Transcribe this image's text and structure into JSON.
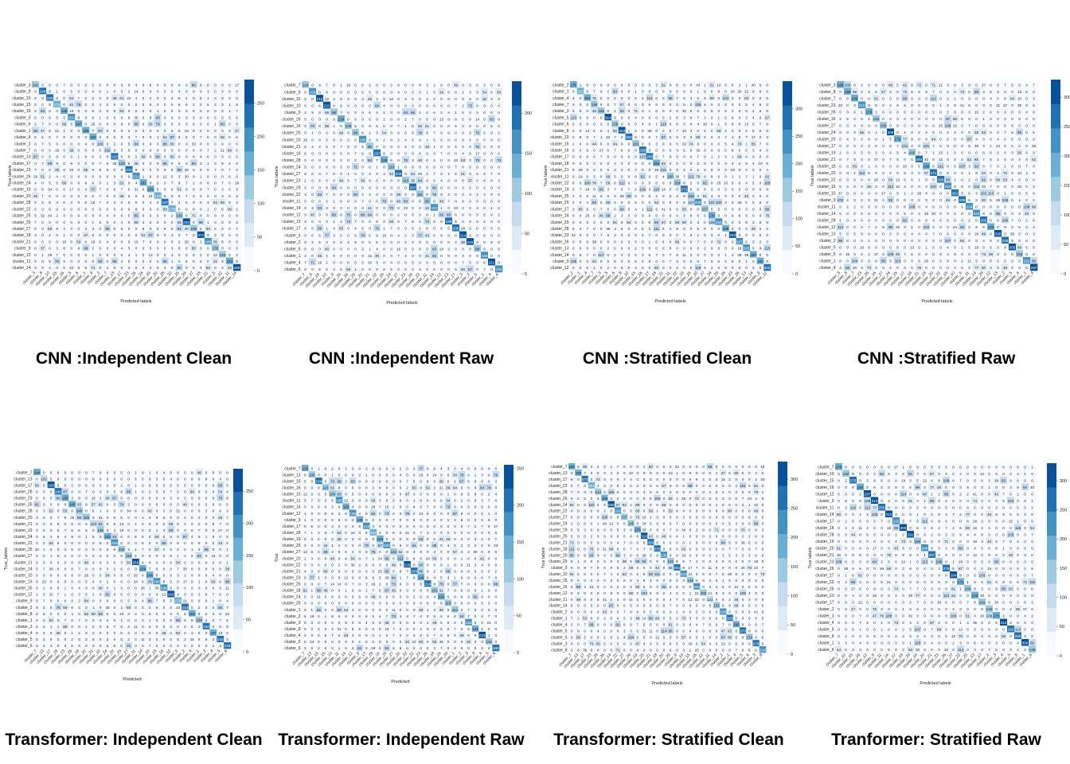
{
  "colors": {
    "scale": [
      "#f7fbff",
      "#deebf7",
      "#c6dbef",
      "#9ecae1",
      "#6baed6",
      "#4292c6",
      "#2171b5",
      "#08519c"
    ]
  },
  "chart_data": [
    {
      "type": "heatmap",
      "title": "CNN :Independent Clean",
      "xlabel": "Predicted labels",
      "ylabel": "True labels",
      "colorbar_ticks": [
        0,
        50,
        100,
        150,
        200,
        250
      ],
      "vmax": 285,
      "row_labels": [
        "cluster_3",
        "cluster_8",
        "cluster_10",
        "cluster_15",
        "cluster_16",
        "cluster_5",
        "cluster_6",
        "cluster_1",
        "cluster_4",
        "cluster_2",
        "cluster_7",
        "cluster_13",
        "cluster_17",
        "cluster_23",
        "cluster_26",
        "cluster_24",
        "cluster_19",
        "cluster_20",
        "cluster_28",
        "cluster_22",
        "cluster_25",
        "cluster_29",
        "cluster_27",
        "cluster_18",
        "cluster_21",
        "cluster_9",
        "cluster_12",
        "cluster_11",
        "cluster_14"
      ],
      "col_labels": [
        "cluster_3",
        "cluster_8",
        "cluster_10",
        "cluster_15",
        "cluster_16",
        "cluster_5",
        "cluster_6",
        "cluster_1",
        "cluster_4",
        "cluster_2",
        "cluster_7",
        "cluster_13",
        "cluster_17",
        "cluster_23",
        "cluster_26",
        "cluster_24",
        "cluster_19",
        "cluster_20",
        "cluster_28",
        "cluster_22",
        "cluster_25",
        "cluster_29",
        "cluster_27",
        "cluster_18",
        "cluster_21",
        "cluster_9",
        "cluster_12",
        "cluster_11",
        "cluster_14"
      ],
      "seed": 11
    },
    {
      "type": "heatmap",
      "title": "CNN :Independent Raw",
      "xlabel": "Predicted labels",
      "ylabel": "True labels",
      "colorbar_ticks": [
        0,
        50,
        100,
        150,
        200
      ],
      "vmax": 240,
      "row_labels": [
        "cluster_7",
        "cluster_8",
        "cluster_15",
        "cluster_10",
        "cluster_9",
        "cluster_26",
        "cluster_16",
        "cluster_25",
        "cluster_20",
        "cluster_21",
        "cluster_19",
        "cluster_28",
        "cluster_24",
        "cluster_27",
        "cluster_23",
        "cluster_29",
        "cluster_22",
        "cluster_11",
        "cluster_14",
        "cluster_12",
        "cluster_13",
        "cluster_17",
        "cluster_3",
        "cluster_2",
        "cluster_5",
        "cluster_1",
        "cluster_4",
        "cluster_6"
      ],
      "col_labels": [
        "cluster_7",
        "cluster_8",
        "cluster_15",
        "cluster_10",
        "cluster_9",
        "cluster_26",
        "cluster_16",
        "cluster_25",
        "cluster_20",
        "cluster_21",
        "cluster_19",
        "cluster_28",
        "cluster_24",
        "cluster_27",
        "cluster_23",
        "cluster_29",
        "cluster_22",
        "cluster_11",
        "cluster_14",
        "cluster_12",
        "cluster_13",
        "cluster_17",
        "cluster_3",
        "cluster_2",
        "cluster_5",
        "cluster_1",
        "cluster_4",
        "cluster_6"
      ],
      "seed": 23
    },
    {
      "type": "heatmap",
      "title": "CNN :Stratified Clean",
      "xlabel": "Predicted labels",
      "ylabel": "True labels",
      "colorbar_ticks": [
        0,
        50,
        100,
        150,
        200,
        250,
        300
      ],
      "vmax": 350,
      "row_labels": [
        "cluster_2",
        "cluster_1",
        "cluster_4",
        "cluster_7",
        "cluster_3",
        "cluster_5",
        "cluster_6",
        "cluster_8",
        "cluster_10",
        "cluster_15",
        "cluster_16",
        "cluster_17",
        "cluster_18",
        "cluster_21",
        "cluster_11",
        "cluster_22",
        "cluster_19",
        "cluster_25",
        "cluster_20",
        "cluster_27",
        "cluster_24",
        "cluster_29",
        "cluster_28",
        "cluster_23",
        "cluster_26",
        "cluster_13",
        "cluster_14",
        "cluster_9",
        "cluster_12"
      ],
      "col_labels": [
        "cluster_2",
        "cluster_1",
        "cluster_4",
        "cluster_7",
        "cluster_3",
        "cluster_5",
        "cluster_6",
        "cluster_8",
        "cluster_10",
        "cluster_15",
        "cluster_16",
        "cluster_17",
        "cluster_18",
        "cluster_21",
        "cluster_11",
        "cluster_22",
        "cluster_19",
        "cluster_25",
        "cluster_20",
        "cluster_27",
        "cluster_24",
        "cluster_29",
        "cluster_28",
        "cluster_23",
        "cluster_26",
        "cluster_13",
        "cluster_14",
        "cluster_9",
        "cluster_12"
      ],
      "seed": 37
    },
    {
      "type": "heatmap",
      "title": "CNN :Stratified Raw",
      "xlabel": "Predicted labels",
      "ylabel": "True labels",
      "colorbar_ticks": [
        0,
        50,
        100,
        150,
        200,
        250,
        300
      ],
      "vmax": 330,
      "row_labels": [
        "cluster_3",
        "cluster_8",
        "cluster_7",
        "cluster_23",
        "cluster_26",
        "cluster_16",
        "cluster_27",
        "cluster_24",
        "cluster_25",
        "cluster_17",
        "cluster_19",
        "cluster_21",
        "cluster_18",
        "cluster_20",
        "cluster_22",
        "cluster_15",
        "cluster_10",
        "cluster_9",
        "cluster_11",
        "cluster_14",
        "cluster_28",
        "cluster_12",
        "cluster_13",
        "cluster_2",
        "cluster_5",
        "cluster_6",
        "cluster_1",
        "cluster_4"
      ],
      "col_labels": [
        "cluster_3",
        "cluster_8",
        "cluster_7",
        "cluster_23",
        "cluster_26",
        "cluster_16",
        "cluster_27",
        "cluster_24",
        "cluster_25",
        "cluster_17",
        "cluster_19",
        "cluster_21",
        "cluster_18",
        "cluster_20",
        "cluster_22",
        "cluster_15",
        "cluster_10",
        "cluster_9",
        "cluster_11",
        "cluster_14",
        "cluster_28",
        "cluster_12",
        "cluster_13",
        "cluster_2",
        "cluster_5",
        "cluster_6",
        "cluster_1",
        "cluster_4"
      ],
      "seed": 41
    },
    {
      "type": "heatmap",
      "title": "Transformer: Independent Clean",
      "xlabel": "Predicted",
      "ylabel": "True_labels",
      "colorbar_ticks": [
        0,
        50,
        100,
        150,
        200,
        250
      ],
      "vmax": 285,
      "row_labels": [
        "cluster_7",
        "cluster_13",
        "cluster_17",
        "cluster_28",
        "cluster_23",
        "cluster_26",
        "cluster_18",
        "cluster_20",
        "cluster_21",
        "cluster_19",
        "cluster_24",
        "cluster_22",
        "cluster_25",
        "cluster_27",
        "cluster_11",
        "cluster_14",
        "cluster_10",
        "cluster_15",
        "cluster_16",
        "cluster_12",
        "cluster_9",
        "cluster_2",
        "cluster_8",
        "cluster_1",
        "cluster_3",
        "cluster_4",
        "cluster_5",
        "cluster_6"
      ],
      "col_labels": [
        "cluster_7",
        "cluster_13",
        "cluster_17",
        "cluster_28",
        "cluster_23",
        "cluster_26",
        "cluster_18",
        "cluster_20",
        "cluster_21",
        "cluster_19",
        "cluster_24",
        "cluster_22",
        "cluster_25",
        "cluster_27",
        "cluster_11",
        "cluster_14",
        "cluster_10",
        "cluster_15",
        "cluster_16",
        "cluster_12",
        "cluster_9",
        "cluster_2",
        "cluster_8",
        "cluster_1",
        "cluster_3",
        "cluster_4",
        "cluster_5",
        "cluster_6"
      ],
      "seed": 53
    },
    {
      "type": "heatmap",
      "title": "Transformer: Independent Raw",
      "xlabel": "Predicted",
      "ylabel": "True",
      "colorbar_ticks": [
        0,
        50,
        100,
        150,
        200,
        250
      ],
      "vmax": 255,
      "row_labels": [
        "cluster_7",
        "cluster_13",
        "cluster_15",
        "cluster_16",
        "cluster_10",
        "cluster_11",
        "cluster_14",
        "cluster_12",
        "cluster_9",
        "cluster_17",
        "cluster_28",
        "cluster_19",
        "cluster_25",
        "cluster_27",
        "cluster_20",
        "cluster_22",
        "cluster_21",
        "cluster_23",
        "cluster_26",
        "cluster_18",
        "cluster_24",
        "cluster_29",
        "cluster_1",
        "cluster_2",
        "cluster_3",
        "cluster_8",
        "cluster_4",
        "cluster_5",
        "cluster_6"
      ],
      "col_labels": [
        "cluster_7",
        "cluster_13",
        "cluster_15",
        "cluster_16",
        "cluster_10",
        "cluster_11",
        "cluster_14",
        "cluster_12",
        "cluster_9",
        "cluster_17",
        "cluster_28",
        "cluster_19",
        "cluster_25",
        "cluster_27",
        "cluster_20",
        "cluster_22",
        "cluster_21",
        "cluster_23",
        "cluster_26",
        "cluster_18",
        "cluster_24",
        "cluster_29",
        "cluster_1",
        "cluster_2",
        "cluster_3",
        "cluster_8",
        "cluster_4",
        "cluster_5",
        "cluster_6"
      ],
      "seed": 67
    },
    {
      "type": "heatmap",
      "title": "Transformer: Stratified Clean",
      "xlabel": "Predicted labels",
      "ylabel": "True labels",
      "colorbar_ticks": [
        0,
        50,
        100,
        150,
        200,
        250,
        300
      ],
      "vmax": 330,
      "row_labels": [
        "cluster_7",
        "cluster_13",
        "cluster_17",
        "cluster_23",
        "cluster_28",
        "cluster_26",
        "cluster_14",
        "cluster_22",
        "cluster_27",
        "cluster_24",
        "cluster_19",
        "cluster_25",
        "cluster_21",
        "cluster_18",
        "cluster_20",
        "cluster_29",
        "cluster_9",
        "cluster_10",
        "cluster_15",
        "cluster_16",
        "cluster_12",
        "cluster_11",
        "cluster_14",
        "cluster_2",
        "cluster_1",
        "cluster_4",
        "cluster_5",
        "cluster_6",
        "cluster_3",
        "cluster_8"
      ],
      "col_labels": [
        "cluster_7",
        "cluster_13",
        "cluster_17",
        "cluster_23",
        "cluster_28",
        "cluster_26",
        "cluster_14",
        "cluster_22",
        "cluster_27",
        "cluster_24",
        "cluster_19",
        "cluster_25",
        "cluster_21",
        "cluster_18",
        "cluster_20",
        "cluster_29",
        "cluster_9",
        "cluster_10",
        "cluster_15",
        "cluster_16",
        "cluster_12",
        "cluster_11",
        "cluster_14",
        "cluster_2",
        "cluster_1",
        "cluster_4",
        "cluster_5",
        "cluster_6",
        "cluster_3",
        "cluster_8"
      ],
      "seed": 79
    },
    {
      "type": "heatmap",
      "title": "Tranformer: Stratified Raw",
      "xlabel": "Predicted labels",
      "ylabel": "True labels",
      "colorbar_ticks": [
        0,
        50,
        100,
        150,
        200,
        250,
        300
      ],
      "vmax": 330,
      "row_labels": [
        "cluster_7",
        "cluster_10",
        "cluster_15",
        "cluster_16",
        "cluster_12",
        "cluster_9",
        "cluster_11",
        "cluster_14",
        "cluster_17",
        "cluster_18",
        "cluster_28",
        "cluster_19",
        "cluster_20",
        "cluster_21",
        "cluster_23",
        "cluster_26",
        "cluster_27",
        "cluster_22",
        "cluster_25",
        "cluster_13",
        "cluster_17",
        "cluster_2",
        "cluster_3",
        "cluster_4",
        "cluster_5",
        "cluster_8",
        "cluster_1",
        "cluster_6"
      ],
      "col_labels": [
        "cluster_7",
        "cluster_10",
        "cluster_15",
        "cluster_16",
        "cluster_12",
        "cluster_9",
        "cluster_11",
        "cluster_14",
        "cluster_17",
        "cluster_18",
        "cluster_28",
        "cluster_19",
        "cluster_20",
        "cluster_21",
        "cluster_23",
        "cluster_26",
        "cluster_27",
        "cluster_22",
        "cluster_25",
        "cluster_13",
        "cluster_17",
        "cluster_2",
        "cluster_3",
        "cluster_4",
        "cluster_5",
        "cluster_8",
        "cluster_1",
        "cluster_6"
      ],
      "seed": 97
    }
  ]
}
